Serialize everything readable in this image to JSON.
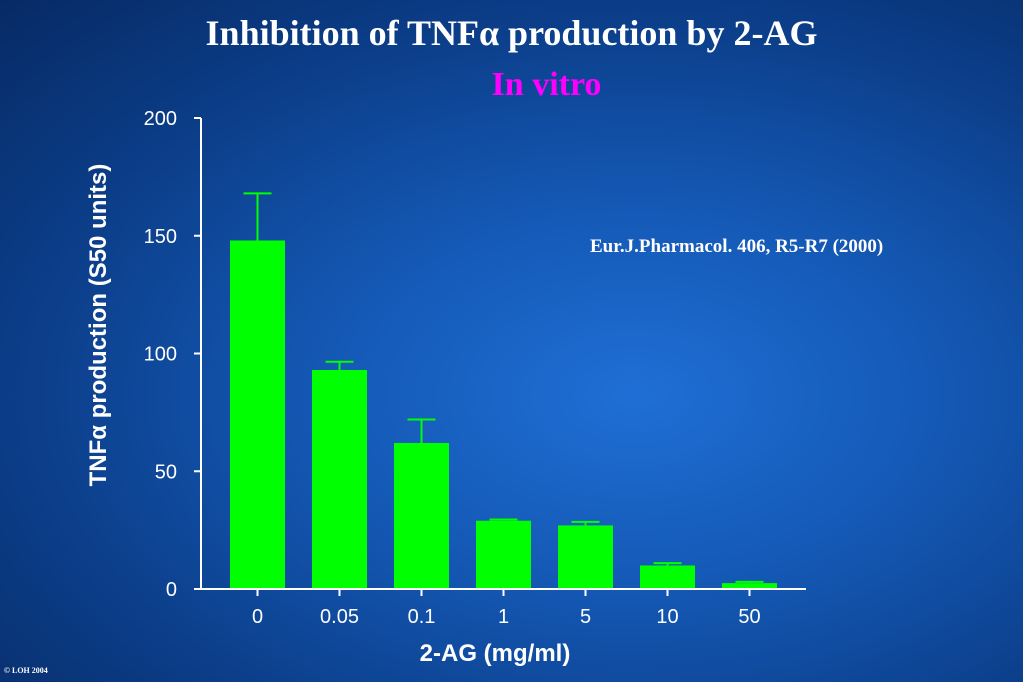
{
  "page": {
    "title": "Inhibition of TNFα production by 2-AG",
    "subtitle": "In vitro",
    "citation": "Eur.J.Pharmacol.  406, R5-R7 (2000)",
    "footer": "© LOH 2004"
  },
  "colors": {
    "subtitle": "#ff00ff",
    "bar": "#00ff00",
    "axis": "#ffffff",
    "text": "#ffffff"
  },
  "chart_data": {
    "type": "bar",
    "title": "",
    "xlabel": "2-AG (mg/ml)",
    "ylabel": "TNFα  production (S50 units)",
    "categories": [
      "0",
      "0.05",
      "0.1",
      "1",
      "5",
      "10",
      "50"
    ],
    "values": [
      148,
      93,
      62,
      29,
      27,
      10,
      2.5
    ],
    "errors": [
      20,
      3.5,
      10,
      0.5,
      1.5,
      1,
      0.5
    ],
    "ylim": [
      0,
      200
    ],
    "yticks": [
      0,
      50,
      100,
      150,
      200
    ],
    "grid": false,
    "legend": "none"
  }
}
